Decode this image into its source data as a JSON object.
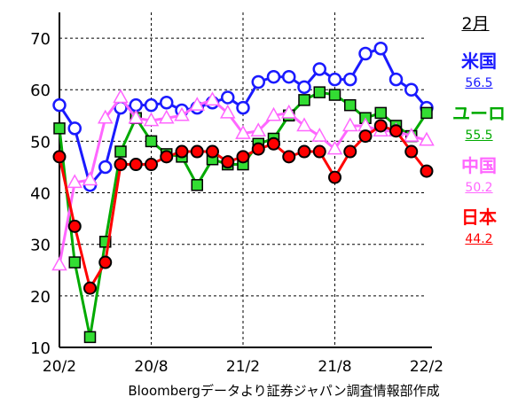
{
  "chart_data": {
    "type": "line",
    "x": [
      "20/2",
      "20/3",
      "20/4",
      "20/5",
      "20/6",
      "20/7",
      "20/8",
      "20/9",
      "20/10",
      "20/11",
      "20/12",
      "21/1",
      "21/2",
      "21/3",
      "21/4",
      "21/5",
      "21/6",
      "21/7",
      "21/8",
      "21/9",
      "21/10",
      "21/11",
      "21/12",
      "22/1",
      "22/2"
    ],
    "x_ticks": [
      "20/2",
      "20/8",
      "21/2",
      "21/8",
      "22/2"
    ],
    "y_ticks": [
      10,
      20,
      30,
      40,
      50,
      60,
      70
    ],
    "ylim": [
      10,
      75
    ],
    "grid": true,
    "series": [
      {
        "name": "米国",
        "color": "#1a1aff",
        "marker": "circle-open",
        "values": [
          57,
          52.5,
          41.5,
          45,
          56.5,
          57,
          57,
          57.5,
          56,
          56.5,
          57.5,
          58.5,
          56.5,
          61.5,
          62.5,
          62.5,
          60.5,
          64,
          62,
          62,
          67,
          68,
          62,
          60,
          56.5
        ]
      },
      {
        "name": "ユーロ",
        "color": "#00aa00",
        "marker": "square-filled",
        "values": [
          52.5,
          26.5,
          12,
          30.5,
          48,
          54.5,
          50,
          47.5,
          47,
          41.5,
          46.5,
          45.5,
          45.5,
          49.5,
          50.5,
          55,
          58,
          59.5,
          59,
          57,
          54.5,
          55.5,
          53,
          51,
          55.5
        ]
      },
      {
        "name": "中国",
        "color": "#ff66ff",
        "marker": "triangle-open",
        "values": [
          26,
          42,
          42.5,
          54.5,
          58.5,
          54.5,
          54,
          54.5,
          55,
          57,
          58,
          55.5,
          51.5,
          52,
          55,
          55.5,
          53,
          51,
          48.5,
          53,
          53,
          52,
          52,
          51,
          50.2
        ]
      },
      {
        "name": "日本",
        "color": "#ff0000",
        "marker": "circle-filled",
        "values": [
          47,
          33.5,
          21.5,
          26.5,
          45.5,
          45.5,
          45.5,
          47,
          48,
          48,
          48,
          46,
          47,
          48.5,
          49.5,
          47,
          48,
          48,
          43,
          48,
          51,
          53,
          52,
          48,
          44.2
        ]
      }
    ]
  },
  "legend": {
    "month": "2月",
    "items": [
      {
        "name": "米国",
        "value": "56.5",
        "color": "#1a1aff"
      },
      {
        "name": "ユーロ",
        "value": "55.5",
        "color": "#00aa00"
      },
      {
        "name": "中国",
        "value": "50.2",
        "color": "#ff66ff"
      },
      {
        "name": "日本",
        "value": "44.2",
        "color": "#ff0000"
      }
    ]
  },
  "source": "Bloombergデータより証券ジャパン調査情報部作成"
}
